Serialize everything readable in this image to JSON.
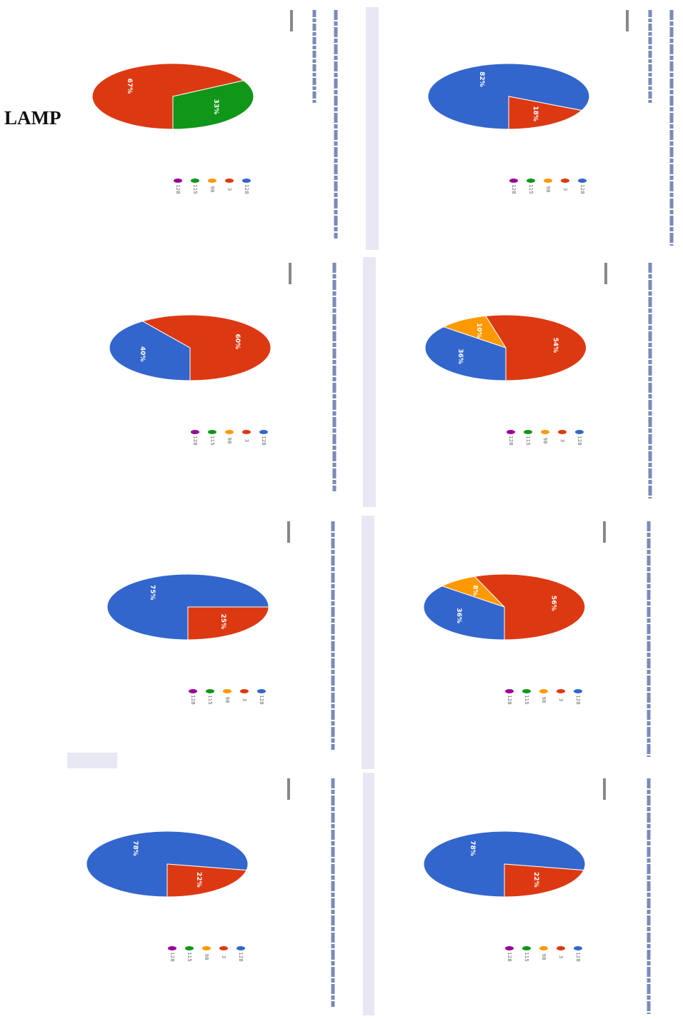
{
  "page": {
    "title": "LAMP"
  },
  "colors": {
    "blue": "#3366cc",
    "red": "#dc3912",
    "orange": "#ff9900",
    "green": "#109618",
    "purple": "#990099",
    "divider": "#e8e8f4"
  },
  "legend": [
    "128",
    "3",
    "98",
    "115",
    "128"
  ],
  "chart_data": [
    {
      "type": "pie",
      "title": "",
      "values": [
        82,
        18
      ],
      "labels": [
        "82%",
        "18%"
      ],
      "colors": [
        "#3366cc",
        "#dc3912"
      ],
      "legend": [
        "128",
        "3",
        "98",
        "115",
        "128"
      ]
    },
    {
      "type": "pie",
      "title": "",
      "values": [
        67,
        33
      ],
      "labels": [
        "67%",
        "33%"
      ],
      "colors": [
        "#dc3912",
        "#109618"
      ],
      "legend": [
        "128",
        "3",
        "98",
        "115",
        "128"
      ]
    },
    {
      "type": "pie",
      "title": "",
      "values": [
        36,
        10,
        54
      ],
      "labels": [
        "36%",
        "10%",
        "54%"
      ],
      "colors": [
        "#3366cc",
        "#ff9900",
        "#dc3912"
      ],
      "legend": [
        "128",
        "3",
        "98",
        "115",
        "128"
      ]
    },
    {
      "type": "pie",
      "title": "",
      "values": [
        40,
        60
      ],
      "labels": [
        "40%",
        "60%"
      ],
      "colors": [
        "#3366cc",
        "#dc3912"
      ],
      "legend": [
        "128",
        "3",
        "98",
        "115",
        "128"
      ]
    },
    {
      "type": "pie",
      "title": "",
      "values": [
        36,
        8,
        56
      ],
      "labels": [
        "36%",
        "8%",
        "56%"
      ],
      "colors": [
        "#3366cc",
        "#ff9900",
        "#dc3912"
      ],
      "legend": [
        "128",
        "3",
        "98",
        "115",
        "128"
      ]
    },
    {
      "type": "pie",
      "title": "",
      "values": [
        75,
        25
      ],
      "labels": [
        "75%",
        "25%"
      ],
      "colors": [
        "#3366cc",
        "#dc3912"
      ],
      "legend": [
        "128",
        "3",
        "98",
        "115",
        "128"
      ]
    },
    {
      "type": "pie",
      "title": "",
      "values": [
        78,
        22
      ],
      "labels": [
        "78%",
        "22%"
      ],
      "colors": [
        "#3366cc",
        "#dc3912"
      ],
      "legend": [
        "128",
        "3",
        "98",
        "115",
        "128"
      ]
    },
    {
      "type": "pie",
      "title": "",
      "values": [
        78,
        22
      ],
      "labels": [
        "78%",
        "22%"
      ],
      "colors": [
        "#3366cc",
        "#dc3912"
      ],
      "legend": [
        "128",
        "3",
        "98",
        "115",
        "128"
      ]
    }
  ]
}
